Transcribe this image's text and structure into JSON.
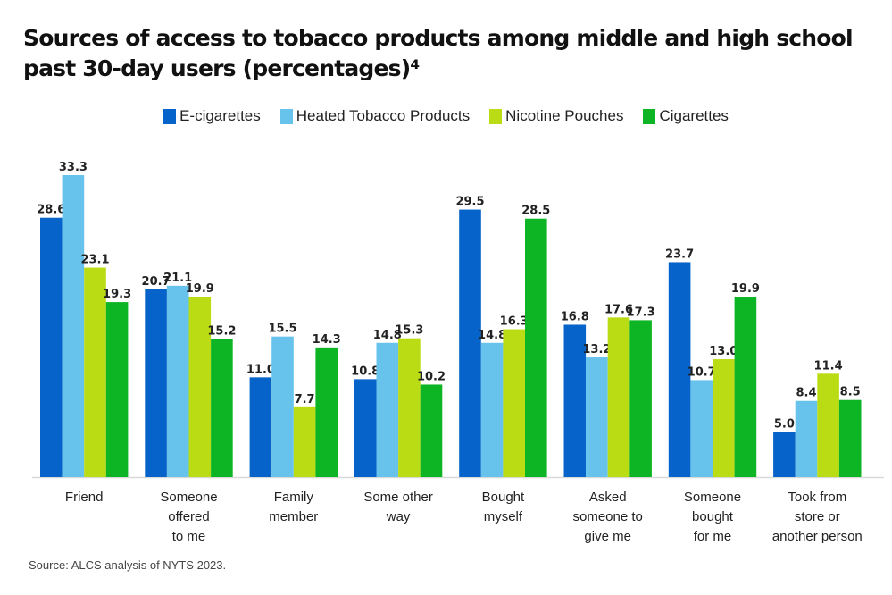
{
  "chart_data": {
    "type": "bar",
    "title": "Sources of access to tobacco products among middle and high school past 30-day users (percentages)⁴",
    "xlabel": "",
    "ylabel": "",
    "ylim": [
      0,
      35
    ],
    "grid": false,
    "legend_position": "top-center",
    "categories": [
      [
        "Friend"
      ],
      [
        "Someone",
        "offered",
        "to me"
      ],
      [
        "Family",
        "member"
      ],
      [
        "Some other",
        "way"
      ],
      [
        "Bought",
        "myself"
      ],
      [
        "Asked",
        "someone to",
        "give me"
      ],
      [
        "Someone",
        "bought",
        "for me"
      ],
      [
        "Took from",
        "store or",
        "another person"
      ]
    ],
    "series": [
      {
        "name": "E-cigarettes",
        "color": "#0563c9",
        "values": [
          28.6,
          20.7,
          11.0,
          10.8,
          29.5,
          16.8,
          23.7,
          5.0
        ]
      },
      {
        "name": "Heated Tobacco Products",
        "color": "#67c3ec",
        "values": [
          33.3,
          21.1,
          15.5,
          14.8,
          14.8,
          13.2,
          10.7,
          8.4
        ]
      },
      {
        "name": "Nicotine Pouches",
        "color": "#badc14",
        "values": [
          23.1,
          19.9,
          7.7,
          15.3,
          16.3,
          17.6,
          13.0,
          11.4
        ]
      },
      {
        "name": "Cigarettes",
        "color": "#0db524",
        "values": [
          19.3,
          15.2,
          14.3,
          10.2,
          28.5,
          17.3,
          19.9,
          8.5
        ]
      }
    ],
    "source": "Source: ALCS analysis of NYTS 2023."
  }
}
